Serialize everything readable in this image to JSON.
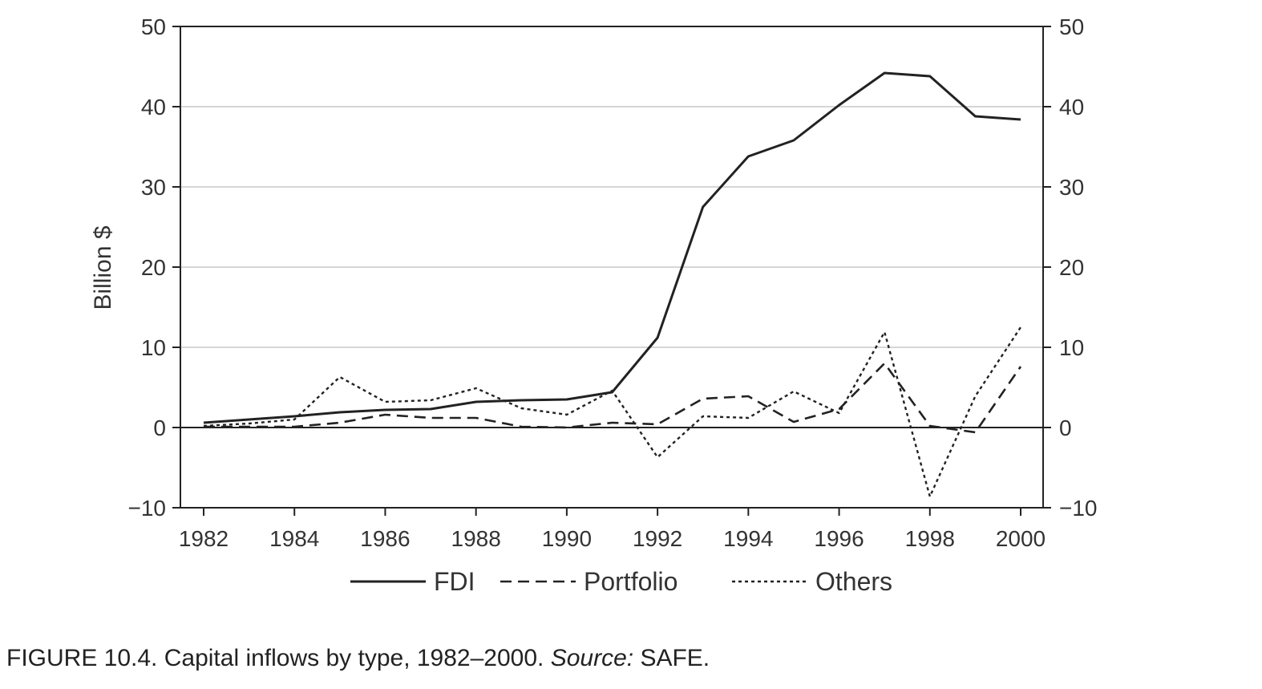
{
  "chart_data": {
    "type": "line",
    "title": "",
    "xlabel": "",
    "ylabel": "Billion $",
    "xlim": [
      1982,
      2000
    ],
    "ylim": [
      -10,
      50
    ],
    "x_ticks": [
      "1982",
      "1984",
      "1986",
      "1988",
      "1990",
      "1992",
      "1994",
      "1996",
      "1998",
      "2000"
    ],
    "y_ticks": [
      "50",
      "40",
      "30",
      "20",
      "10",
      "0",
      "−10"
    ],
    "y_tick_values": [
      50,
      40,
      30,
      20,
      10,
      0,
      -10
    ],
    "right_axis_duplicate": true,
    "grid": "horizontal",
    "legend_position": "bottom",
    "x": [
      1982,
      1983,
      1984,
      1985,
      1986,
      1987,
      1988,
      1989,
      1990,
      1991,
      1992,
      1993,
      1994,
      1995,
      1996,
      1997,
      1998,
      1999,
      2000
    ],
    "series": [
      {
        "name": "FDI",
        "style": "solid",
        "values": [
          0.6,
          1.0,
          1.4,
          1.9,
          2.2,
          2.3,
          3.2,
          3.4,
          3.5,
          4.4,
          11.2,
          27.5,
          33.8,
          35.8,
          40.2,
          44.2,
          43.8,
          38.8,
          38.4
        ]
      },
      {
        "name": "Portfolio",
        "style": "dashed",
        "values": [
          0.1,
          0.1,
          0.1,
          0.6,
          1.6,
          1.2,
          1.2,
          0.1,
          0.0,
          0.6,
          0.4,
          3.6,
          3.9,
          0.7,
          2.3,
          8.0,
          0.2,
          -0.6,
          7.6
        ]
      },
      {
        "name": "Others",
        "style": "dotted",
        "values": [
          0.2,
          0.5,
          1.0,
          6.3,
          3.2,
          3.4,
          4.9,
          2.4,
          1.6,
          4.6,
          -3.7,
          1.4,
          1.2,
          4.5,
          1.8,
          11.9,
          -8.6,
          3.9,
          12.5
        ]
      }
    ]
  },
  "caption": {
    "main": "FIGURE 10.4. Capital inflows by type, 1982–2000. ",
    "source_label": "Source:",
    "source_value": " SAFE."
  }
}
